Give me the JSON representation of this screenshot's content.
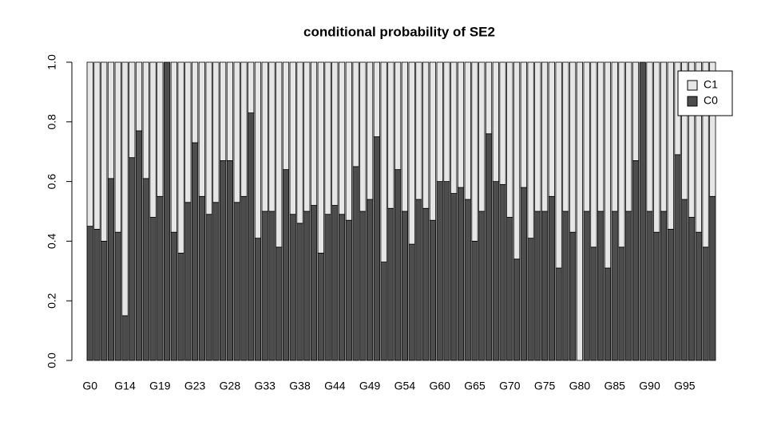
{
  "chart_data": {
    "type": "stacked_bar",
    "title": "conditional probability of  SE2",
    "categories": [
      "G0",
      null,
      null,
      null,
      null,
      "G14",
      null,
      null,
      null,
      null,
      "G19",
      null,
      null,
      null,
      null,
      "G23",
      null,
      null,
      null,
      null,
      "G28",
      null,
      null,
      null,
      null,
      "G33",
      null,
      null,
      null,
      null,
      "G38",
      null,
      null,
      null,
      null,
      "G44",
      null,
      null,
      null,
      null,
      "G49",
      null,
      null,
      null,
      null,
      "G54",
      null,
      null,
      null,
      null,
      "G60",
      null,
      null,
      null,
      null,
      "G65",
      null,
      null,
      null,
      null,
      "G70",
      null,
      null,
      null,
      null,
      "G75",
      null,
      null,
      null,
      null,
      "G80",
      null,
      null,
      null,
      null,
      "G85",
      null,
      null,
      null,
      null,
      "G90",
      null,
      null,
      null,
      null,
      "G95",
      null,
      null,
      null,
      null
    ],
    "series": [
      {
        "name": "C0",
        "color": "#4d4d4d",
        "values": [
          0.45,
          0.44,
          0.4,
          0.61,
          0.43,
          0.15,
          0.68,
          0.77,
          0.61,
          0.48,
          0.55,
          1.0,
          0.43,
          0.36,
          0.53,
          0.73,
          0.55,
          0.49,
          0.53,
          0.67,
          0.67,
          0.53,
          0.55,
          0.83,
          0.41,
          0.5,
          0.5,
          0.38,
          0.64,
          0.49,
          0.46,
          0.5,
          0.52,
          0.36,
          0.49,
          0.52,
          0.49,
          0.47,
          0.65,
          0.5,
          0.54,
          0.75,
          0.33,
          0.51,
          0.64,
          0.5,
          0.39,
          0.54,
          0.51,
          0.47,
          0.6,
          0.6,
          0.56,
          0.58,
          0.54,
          0.4,
          0.5,
          0.76,
          0.6,
          0.59,
          0.48,
          0.34,
          0.58,
          0.41,
          0.5,
          0.5,
          0.55,
          0.31,
          0.5,
          0.43,
          0.0,
          0.5,
          0.38,
          0.5,
          0.31,
          0.5,
          0.38,
          0.5,
          0.67,
          1.0,
          0.5,
          0.43,
          0.5,
          0.44,
          0.69,
          0.54,
          0.48,
          0.43,
          0.38,
          0.55
        ]
      },
      {
        "name": "C1",
        "color": "#e6e6e6",
        "values": [
          0.55,
          0.56,
          0.6,
          0.39,
          0.57,
          0.85,
          0.32,
          0.23,
          0.39,
          0.52,
          0.45,
          0,
          0.57,
          0.64,
          0.47,
          0.27,
          0.45,
          0.51,
          0.47,
          0.33,
          0.33,
          0.47,
          0.45,
          0.17,
          0.59,
          0.5,
          0.5,
          0.62,
          0.36,
          0.51,
          0.54,
          0.5,
          0.48,
          0.64,
          0.51,
          0.48,
          0.51,
          0.53,
          0.35,
          0.5,
          0.46,
          0.25,
          0.67,
          0.49,
          0.36,
          0.5,
          0.61,
          0.46,
          0.49,
          0.53,
          0.4,
          0.4,
          0.44,
          0.42,
          0.46,
          0.6,
          0.5,
          0.24,
          0.4,
          0.41,
          0.52,
          0.66,
          0.42,
          0.59,
          0.5,
          0.5,
          0.45,
          0.69,
          0.5,
          0.57,
          1.0,
          0.5,
          0.62,
          0.5,
          0.69,
          0.5,
          0.62,
          0.5,
          0.33,
          0,
          0.5,
          0.57,
          0.5,
          0.56,
          0.31,
          0.46,
          0.52,
          0.57,
          0.62,
          0.45
        ]
      }
    ],
    "ylim": [
      0,
      1
    ],
    "yticks": [
      {
        "value": 0,
        "label": "0.0"
      },
      0.2,
      0.4,
      0.6,
      0.8,
      {
        "value": 1,
        "label": "1.0"
      }
    ],
    "legend": "top-right"
  }
}
